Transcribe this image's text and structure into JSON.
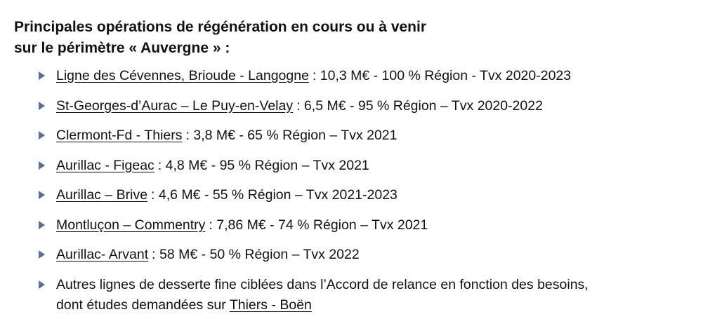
{
  "header": {
    "title_lines": [
      "Principales opérations de régénération en cours ou à venir",
      "sur le périmètre « Auvergne » :"
    ]
  },
  "items": [
    {
      "link": "Ligne des Cévennes, Brioude - Langogne",
      "text": ": 10,3 M€ - 100 % Région - Tvx 2020-2023"
    },
    {
      "link": "St-Georges-d’Aurac – Le Puy-en-Velay",
      "text": ": 6,5 M€ - 95 % Région – Tvx 2020-2022"
    },
    {
      "link": "Clermont-Fd - Thiers",
      "text": ": 3,8 M€ - 65 % Région – Tvx 2021"
    },
    {
      "link": "Aurillac - Figeac",
      "text": ": 4,8 M€ - 95 % Région – Tvx 2021"
    },
    {
      "link": "Aurillac – Brive",
      "text": ": 4,6 M€ - 55 % Région – Tvx 2021-2023"
    },
    {
      "link": "Montluçon – Commentry",
      "text": ": 7,86 M€ - 74 % Région – Tvx 2021"
    },
    {
      "link": "Aurillac- Arvant",
      "text": ": 58 M€ - 50 % Région – Tvx 2022"
    }
  ],
  "last_item": {
    "line1": "Autres lignes de desserte fine ciblées dans l’Accord de relance en fonction des besoins,",
    "line2": "dont études demandées sur",
    "link": "Thiers - Boën"
  }
}
